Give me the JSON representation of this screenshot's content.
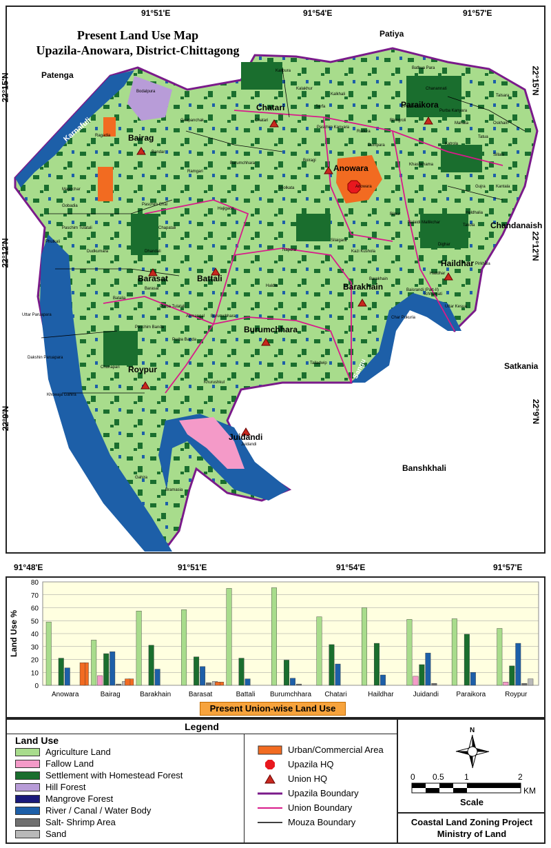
{
  "map": {
    "title_line1": "Present Land Use  Map",
    "title_line2": "Upazila-Anowara, District-Chittagong",
    "top_coords": [
      "91°51'E",
      "91°54'E",
      "91°57'E"
    ],
    "bottom_coords": [
      "91°48'E",
      "91°51'E",
      "91°54'E",
      "91°57'E"
    ],
    "left_coords": [
      "22°15'N",
      "22°12'N",
      "22°9'N"
    ],
    "right_coords": [
      "22°15'N",
      "22°12'N",
      "22°9'N"
    ],
    "neighbors": [
      "Patiya",
      "Patenga",
      "Chandanaish",
      "Satkania",
      "Banshkhali"
    ],
    "rivers": [
      "Karnafuli",
      "Sangu"
    ],
    "unions": [
      "Chatari",
      "Bairag",
      "Anowara",
      "Paraikora",
      "Barasat",
      "Battali",
      "Barakhain",
      "Haildhar",
      "Burumchhara",
      "Roypur",
      "Juidandi"
    ],
    "mouzas": [
      "Bodalpura",
      "Ragadia",
      "Bandar",
      "Guapanchak",
      "Kalakhur",
      "Hajigaon",
      "Paschim Chal",
      "Majerchar",
      "Gobadia",
      "Paschim Tulatali",
      "Phulkali",
      "Dudkumara",
      "Chapatali",
      "Dhandali",
      "Barasat",
      "Batalia",
      "Purba Tulatali",
      "Paschim Banda",
      "Purba Banda",
      "Airmangal",
      "Uttar Paruapara",
      "Dakshin Paruapara",
      "Chunapari",
      "Khowaja Gahira",
      "Gahira",
      "Bramasia",
      "Juidandi",
      "Khurushkul",
      "Burumchhara",
      "Talladwip",
      "Barakhain",
      "Haildhar",
      "Ichhamati",
      "Uttar Kesua",
      "Char Pukuria",
      "Baisrandi (Part-II)",
      "Dighar",
      "Takola",
      "Anowara",
      "Khashkhama",
      "Sillani",
      "Katrola",
      "Mahata",
      "Tatua",
      "Oskhain",
      "Talsara",
      "Chanannati",
      "Bathua Para",
      "Purba Kanyara",
      "Paschim Kanyara",
      "Bhingroli",
      "Dumpara",
      "Barumchhara",
      "Kalkhali",
      "Paraikora",
      "Sholkata",
      "Chatari",
      "Kalipura",
      "Sarfa",
      "Rudura",
      "Haldia",
      "Silaigara",
      "Kazi Kushola",
      "Boiragi",
      "Napura",
      "Bilpur",
      "Gujra",
      "Kantala",
      "Heldhalia",
      "Nalaidi Mallikchar",
      "Pirkhala",
      "Ramgari"
    ]
  },
  "chart_data": {
    "type": "bar",
    "title": "Present Union-wise Land Use",
    "ylabel": "Land Use %",
    "ylim": [
      0,
      80
    ],
    "yticks": [
      0,
      10,
      20,
      30,
      40,
      50,
      60,
      70,
      80
    ],
    "categories": [
      "Anowara",
      "Bairag",
      "Barakhain",
      "Barasat",
      "Battali",
      "Burumchhara",
      "Chatari",
      "Haildhar",
      "Juidandi",
      "Paraikora",
      "Roypur"
    ],
    "series": [
      {
        "name": "Agriculture Land",
        "color": "#a8dc8c",
        "values": [
          49,
          35,
          57.5,
          58.5,
          75,
          75.5,
          53,
          60,
          51,
          51.5,
          44
        ]
      },
      {
        "name": "Fallow Land",
        "color": "#f49ac8",
        "values": [
          0,
          7.5,
          0,
          0,
          0,
          0,
          0,
          0,
          7,
          0,
          2.5
        ]
      },
      {
        "name": "Settlement with Homestead Forest",
        "color": "#1a6e2e",
        "values": [
          21,
          24.5,
          31,
          22,
          21,
          19.5,
          31.5,
          32.5,
          16,
          39.5,
          15
        ]
      },
      {
        "name": "Hill Forest",
        "color": "#b89cd8",
        "values": [
          0,
          0,
          0,
          0,
          0,
          0,
          0,
          0,
          0,
          0,
          0
        ]
      },
      {
        "name": "Mangrove Forest",
        "color": "#1a1a7a",
        "values": [
          0,
          0,
          0,
          0,
          0,
          0,
          0,
          0,
          0,
          0,
          0
        ]
      },
      {
        "name": "River / Canal / Water Body",
        "color": "#1d5fa8",
        "values": [
          13.5,
          26,
          12.5,
          14.5,
          5,
          5.5,
          16.5,
          8,
          25,
          10,
          32.5
        ]
      },
      {
        "name": "Salt- Shrimp Area",
        "color": "#707070",
        "values": [
          0,
          1,
          0,
          2,
          0,
          1,
          0,
          0,
          1.5,
          0,
          1.5
        ]
      },
      {
        "name": "Sand",
        "color": "#b8b8b8",
        "values": [
          0,
          3,
          0,
          3,
          0,
          0,
          0,
          0,
          0,
          0,
          5
        ]
      },
      {
        "name": "Urban/Commercial Area",
        "color": "#f26b21",
        "values": [
          17.5,
          5,
          0,
          2.5,
          0,
          0,
          0,
          0,
          0,
          0,
          0
        ]
      }
    ]
  },
  "legend": {
    "title": "Legend",
    "land_use_heading": "Land Use",
    "land_use": [
      {
        "label": "Agriculture Land",
        "color": "#a8dc8c"
      },
      {
        "label": "Fallow Land",
        "color": "#f49ac8"
      },
      {
        "label": "Settlement with Homestead Forest",
        "color": "#1a6e2e"
      },
      {
        "label": "Hill Forest",
        "color": "#b89cd8"
      },
      {
        "label": "Mangrove Forest",
        "color": "#1a1a7a"
      },
      {
        "label": "River / Canal / Water Body",
        "color": "#1d5fa8"
      },
      {
        "label": "Salt- Shrimp Area",
        "color": "#707070"
      },
      {
        "label": "Sand",
        "color": "#b8b8b8"
      }
    ],
    "others": [
      {
        "label": "Urban/Commercial Area",
        "kind": "box",
        "color": "#f26b21"
      },
      {
        "label": "Upazila HQ",
        "kind": "octagon",
        "color": "#e8181e"
      },
      {
        "label": "Union HQ",
        "kind": "triangle",
        "color": "#c8281e"
      },
      {
        "label": "Upazila Boundary",
        "kind": "line",
        "color": "#7a1a8a"
      },
      {
        "label": "Union Boundary",
        "kind": "line",
        "color": "#d81a8a"
      },
      {
        "label": "Mouza Boundary",
        "kind": "line",
        "color": "#000000"
      }
    ],
    "north": "N",
    "scale_ticks": [
      "0",
      "0.5",
      "1",
      "2"
    ],
    "scale_unit": "KM",
    "scale_label": "Scale",
    "project_line1": "Coastal Land Zoning Project",
    "project_line2": "Ministry of Land"
  }
}
